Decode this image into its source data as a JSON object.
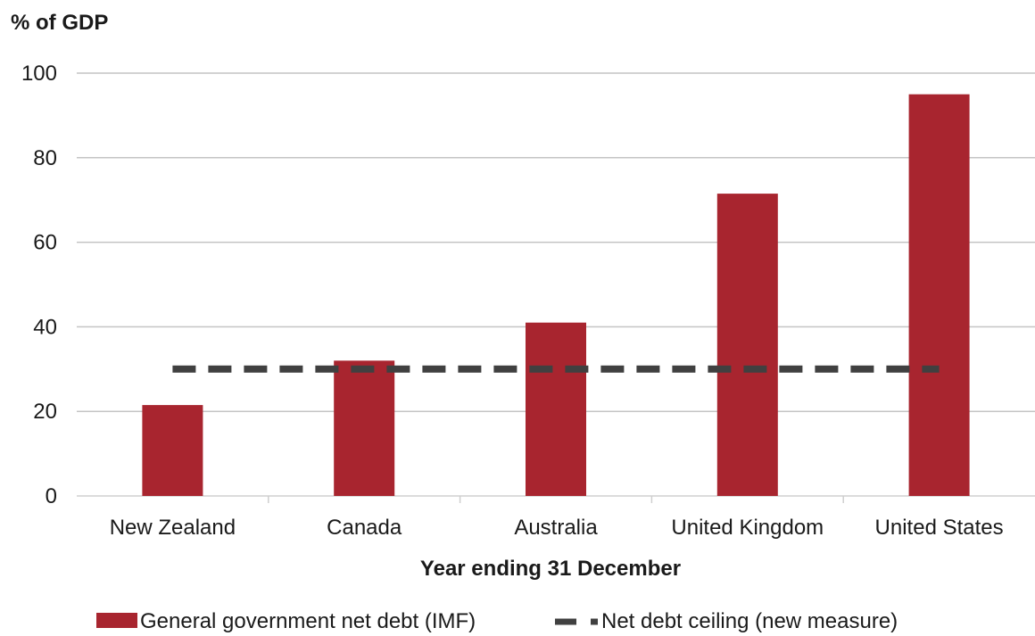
{
  "chart_data": {
    "type": "bar",
    "ylabel": "% of GDP",
    "xlabel": "Year ending 31 December",
    "categories": [
      "New Zealand",
      "Canada",
      "Australia",
      "United Kingdom",
      "United States"
    ],
    "series": [
      {
        "name": "General government net debt (IMF)",
        "type": "bar",
        "values": [
          21.5,
          32,
          41,
          71.5,
          95
        ],
        "color": "#a8252f"
      },
      {
        "name": "Net debt ceiling (new measure)",
        "type": "line",
        "style": "dashed",
        "values": [
          30,
          30,
          30,
          30,
          30
        ],
        "color": "#404040"
      }
    ],
    "ylim": [
      0,
      100
    ],
    "yticks": [
      0,
      20,
      40,
      60,
      80,
      100
    ],
    "grid": true,
    "legend_position": "bottom"
  }
}
